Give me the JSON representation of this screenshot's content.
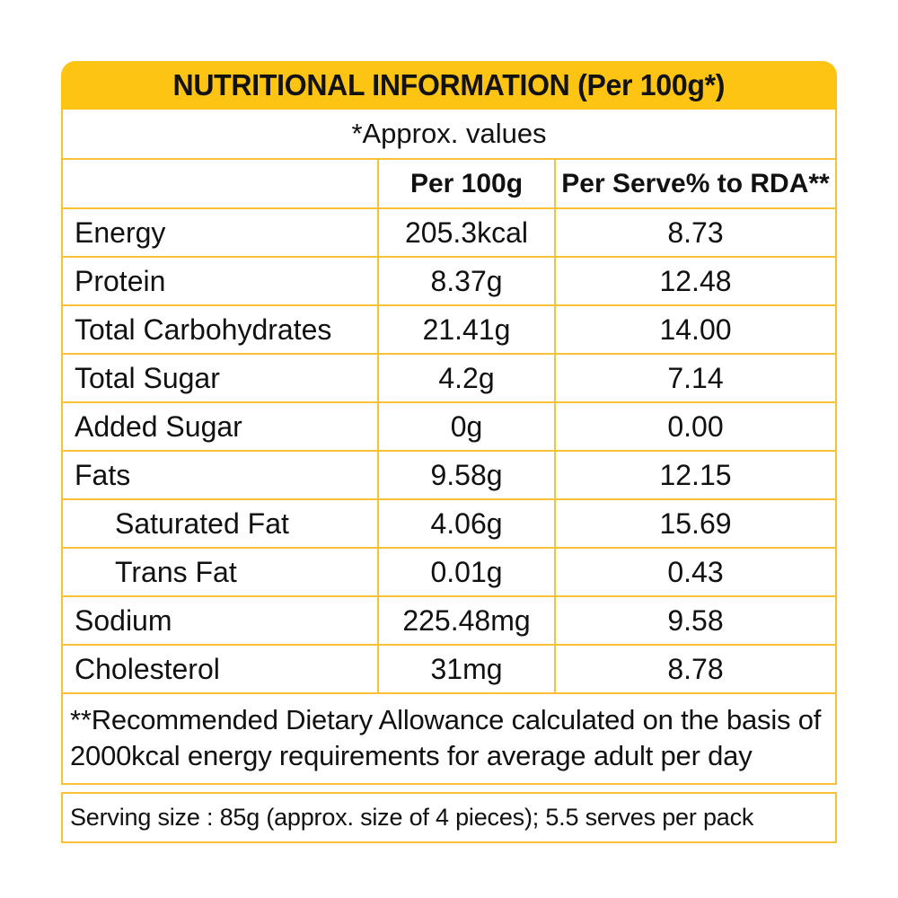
{
  "label": {
    "title": "NUTRITIONAL INFORMATION (Per 100g*)",
    "approx_note": "*Approx. values",
    "rda_note": "**Recommended Dietary Allowance calculated on the basis of 2000kcal energy requirements for average adult per day",
    "serving_note": "Serving size : 85g (approx. size of 4 pieces); 5.5 serves per pack",
    "colors": {
      "header_bg": "#FDC414",
      "border": "#F9C136",
      "text": "#111111"
    }
  },
  "table": {
    "columns": [
      "",
      "Per 100g",
      "Per Serve% to RDA**"
    ],
    "rows": [
      {
        "label": "Energy",
        "per_100g": "205.3kcal",
        "per_serve_rda": "8.73",
        "indent": false
      },
      {
        "label": "Protein",
        "per_100g": "8.37g",
        "per_serve_rda": "12.48",
        "indent": false
      },
      {
        "label": "Total Carbohydrates",
        "per_100g": "21.41g",
        "per_serve_rda": "14.00",
        "indent": false
      },
      {
        "label": "Total Sugar",
        "per_100g": "4.2g",
        "per_serve_rda": "7.14",
        "indent": false
      },
      {
        "label": "Added Sugar",
        "per_100g": "0g",
        "per_serve_rda": "0.00",
        "indent": false
      },
      {
        "label": "Fats",
        "per_100g": "9.58g",
        "per_serve_rda": "12.15",
        "indent": false
      },
      {
        "label": "Saturated Fat",
        "per_100g": "4.06g",
        "per_serve_rda": "15.69",
        "indent": true
      },
      {
        "label": "Trans Fat",
        "per_100g": "0.01g",
        "per_serve_rda": "0.43",
        "indent": true
      },
      {
        "label": "Sodium",
        "per_100g": "225.48mg",
        "per_serve_rda": "9.58",
        "indent": false
      },
      {
        "label": "Cholesterol",
        "per_100g": "31mg",
        "per_serve_rda": "8.78",
        "indent": false
      }
    ]
  }
}
